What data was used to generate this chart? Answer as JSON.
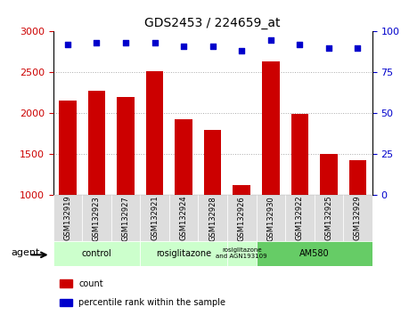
{
  "title": "GDS2453 / 224659_at",
  "samples": [
    "GSM132919",
    "GSM132923",
    "GSM132927",
    "GSM132921",
    "GSM132924",
    "GSM132928",
    "GSM132926",
    "GSM132930",
    "GSM132922",
    "GSM132925",
    "GSM132929"
  ],
  "counts": [
    2160,
    2280,
    2200,
    2510,
    1930,
    1800,
    1130,
    2630,
    1990,
    1510,
    1430
  ],
  "percentile_ranks": [
    92,
    93,
    93,
    93,
    91,
    91,
    88,
    95,
    92,
    90,
    90
  ],
  "bar_color": "#cc0000",
  "dot_color": "#0000cc",
  "ylim_left": [
    1000,
    3000
  ],
  "ylim_right": [
    0,
    100
  ],
  "yticks_left": [
    1000,
    1500,
    2000,
    2500,
    3000
  ],
  "yticks_right": [
    0,
    25,
    50,
    75,
    100
  ],
  "groups": [
    {
      "label": "control",
      "start": 0,
      "end": 2,
      "color": "#ccffcc"
    },
    {
      "label": "rosiglitazone",
      "start": 3,
      "end": 5,
      "color": "#ccffcc"
    },
    {
      "label": "rosiglitazone\nand AGN193109",
      "start": 6,
      "end": 6,
      "color": "#ccffcc"
    },
    {
      "label": "AM580",
      "start": 7,
      "end": 10,
      "color": "#66cc66"
    }
  ],
  "agent_label": "agent",
  "legend_items": [
    {
      "label": "count",
      "color": "#cc0000"
    },
    {
      "label": "percentile rank within the sample",
      "color": "#0000cc"
    }
  ],
  "grid_color": "#aaaaaa",
  "bg_color": "#ffffff",
  "tick_label_color_left": "#cc0000",
  "tick_label_color_right": "#0000cc"
}
